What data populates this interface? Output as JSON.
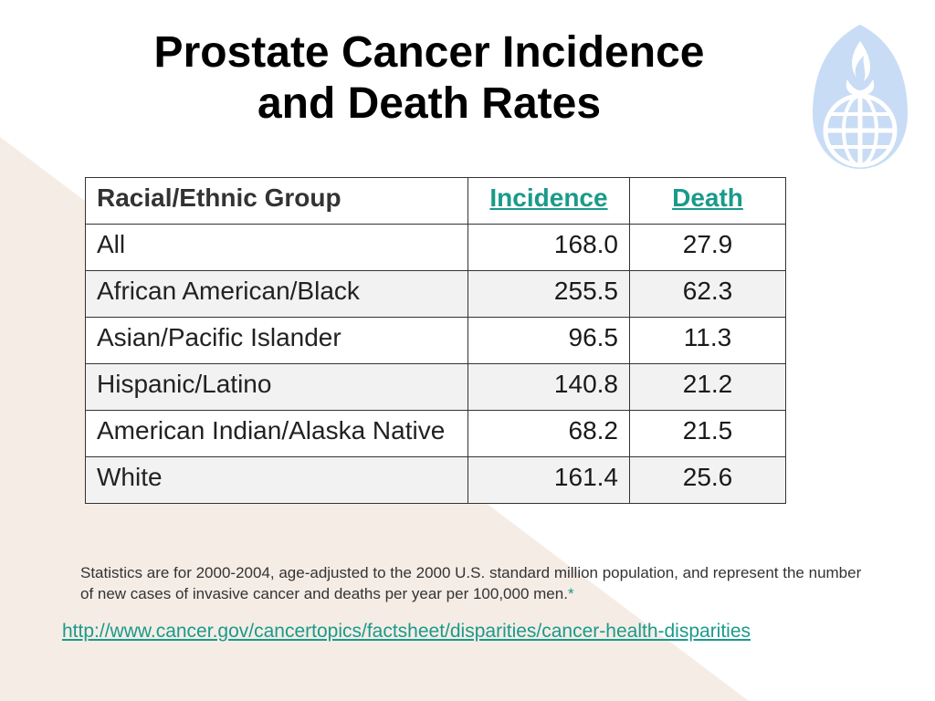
{
  "title": {
    "line1": "Prostate Cancer Incidence",
    "line2": "and Death Rates"
  },
  "colors": {
    "background_wedge": "#f5ece6",
    "link": "#1a9a8a",
    "logo": "#c8dcf5"
  },
  "logo": {
    "icon": "globe-flame-shield-icon"
  },
  "table": {
    "headers": [
      "Racial/Ethnic Group",
      "Incidence",
      "Death"
    ],
    "rows": [
      {
        "group": "All",
        "incidence": "168.0",
        "death": "27.9",
        "bold": false
      },
      {
        "group": "African American/Black",
        "incidence": "255.5",
        "death": "62.3",
        "bold": true
      },
      {
        "group": "Asian/Pacific Islander",
        "incidence": "96.5",
        "death": "11.3",
        "bold": false
      },
      {
        "group": "Hispanic/Latino",
        "incidence": "140.8",
        "death": "21.2",
        "bold": false
      },
      {
        "group": "American Indian/Alaska Native",
        "incidence": "68.2",
        "death": "21.5",
        "bold": false
      },
      {
        "group": "White",
        "incidence": "161.4",
        "death": "25.6",
        "bold": false
      }
    ]
  },
  "note": {
    "text": "Statistics are for 2000-2004, age-adjusted to the 2000 U.S. standard million population, and represent the number of new cases of invasive cancer and deaths per year per 100,000 men.",
    "footnote_link": "*"
  },
  "source_url": "http://www.cancer.gov/cancertopics/factsheet/disparities/cancer-health-disparities"
}
